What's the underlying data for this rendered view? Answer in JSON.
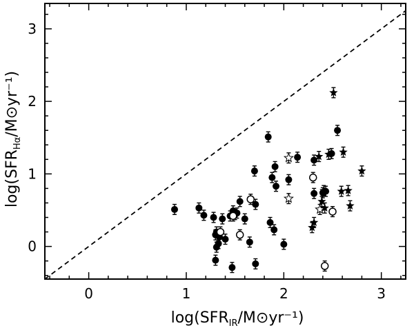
{
  "chart_data": {
    "type": "scatter",
    "title": "",
    "xlabel": {
      "prefix": "log(SFR",
      "sub": "IR",
      "suffix": "/M⊙yr⁻¹)"
    },
    "ylabel": {
      "prefix": "log(SFR",
      "sub": "Hα",
      "suffix": "/M⊙yr⁻¹)"
    },
    "xlim": [
      -0.45,
      3.25
    ],
    "ylim": [
      -0.45,
      3.35
    ],
    "xticks": [
      0,
      1,
      2,
      3
    ],
    "yticks": [
      0,
      1,
      2,
      3
    ],
    "grid": false,
    "reference_line": {
      "style": "dashed",
      "relation": "y = x"
    },
    "series": [
      {
        "marker": "filled-circle",
        "points": [
          [
            0.88,
            0.51,
            0.07
          ],
          [
            1.13,
            0.53,
            0.07
          ],
          [
            1.18,
            0.43,
            0.07
          ],
          [
            1.28,
            0.4,
            0.07
          ],
          [
            1.3,
            0.16,
            0.07
          ],
          [
            1.31,
            0.2,
            0.07
          ],
          [
            1.3,
            -0.19,
            0.07
          ],
          [
            1.31,
            -0.01,
            0.07
          ],
          [
            1.33,
            0.04,
            0.07
          ],
          [
            1.34,
            0.13,
            0.07
          ],
          [
            1.37,
            0.38,
            0.07
          ],
          [
            1.4,
            0.1,
            0.07
          ],
          [
            1.45,
            0.42,
            0.07
          ],
          [
            1.48,
            0.49,
            0.07
          ],
          [
            1.47,
            -0.29,
            0.07
          ],
          [
            1.5,
            0.44,
            0.07
          ],
          [
            1.52,
            0.46,
            0.07
          ],
          [
            1.55,
            0.62,
            0.07
          ],
          [
            1.6,
            0.38,
            0.07
          ],
          [
            1.65,
            0.06,
            0.07
          ],
          [
            1.7,
            1.04,
            0.07
          ],
          [
            1.71,
            0.58,
            0.07
          ],
          [
            1.71,
            -0.24,
            0.07
          ],
          [
            1.84,
            1.51,
            0.07
          ],
          [
            1.86,
            0.33,
            0.07
          ],
          [
            1.88,
            0.95,
            0.07
          ],
          [
            1.9,
            0.23,
            0.07
          ],
          [
            1.91,
            1.1,
            0.07
          ],
          [
            1.92,
            0.83,
            0.07
          ],
          [
            2.0,
            0.03,
            0.07
          ],
          [
            2.05,
            0.92,
            0.07
          ],
          [
            2.14,
            1.23,
            0.07
          ],
          [
            2.31,
            1.19,
            0.07
          ],
          [
            2.31,
            0.73,
            0.07
          ],
          [
            2.4,
            0.74,
            0.07
          ],
          [
            2.43,
            0.76,
            0.07
          ],
          [
            2.49,
            1.28,
            0.07
          ],
          [
            2.55,
            1.6,
            0.07
          ]
        ]
      },
      {
        "marker": "open-circle",
        "points": [
          [
            1.35,
            0.2,
            0.07
          ],
          [
            1.48,
            0.42,
            0.07
          ],
          [
            1.55,
            0.16,
            0.07
          ],
          [
            1.66,
            0.65,
            0.07
          ],
          [
            2.3,
            0.95,
            0.07
          ],
          [
            2.42,
            -0.27,
            0.07
          ],
          [
            2.5,
            0.48,
            0.07
          ]
        ]
      },
      {
        "marker": "filled-star",
        "points": [
          [
            2.36,
            1.24,
            0.07
          ],
          [
            2.46,
            1.27,
            0.07
          ],
          [
            2.51,
            2.12,
            0.07
          ],
          [
            2.61,
            1.3,
            0.07
          ],
          [
            2.31,
            0.33,
            0.07
          ],
          [
            2.29,
            0.26,
            0.07
          ],
          [
            2.39,
            0.62,
            0.07
          ],
          [
            2.41,
            0.77,
            0.07
          ],
          [
            2.42,
            0.53,
            0.07
          ],
          [
            2.59,
            0.76,
            0.07
          ],
          [
            2.66,
            0.77,
            0.07
          ],
          [
            2.68,
            0.56,
            0.07
          ],
          [
            2.8,
            1.04,
            0.07
          ]
        ]
      },
      {
        "marker": "open-star",
        "points": [
          [
            2.05,
            1.22,
            0.07
          ],
          [
            2.05,
            0.66,
            0.07
          ],
          [
            2.37,
            0.51,
            0.07
          ]
        ]
      }
    ]
  }
}
